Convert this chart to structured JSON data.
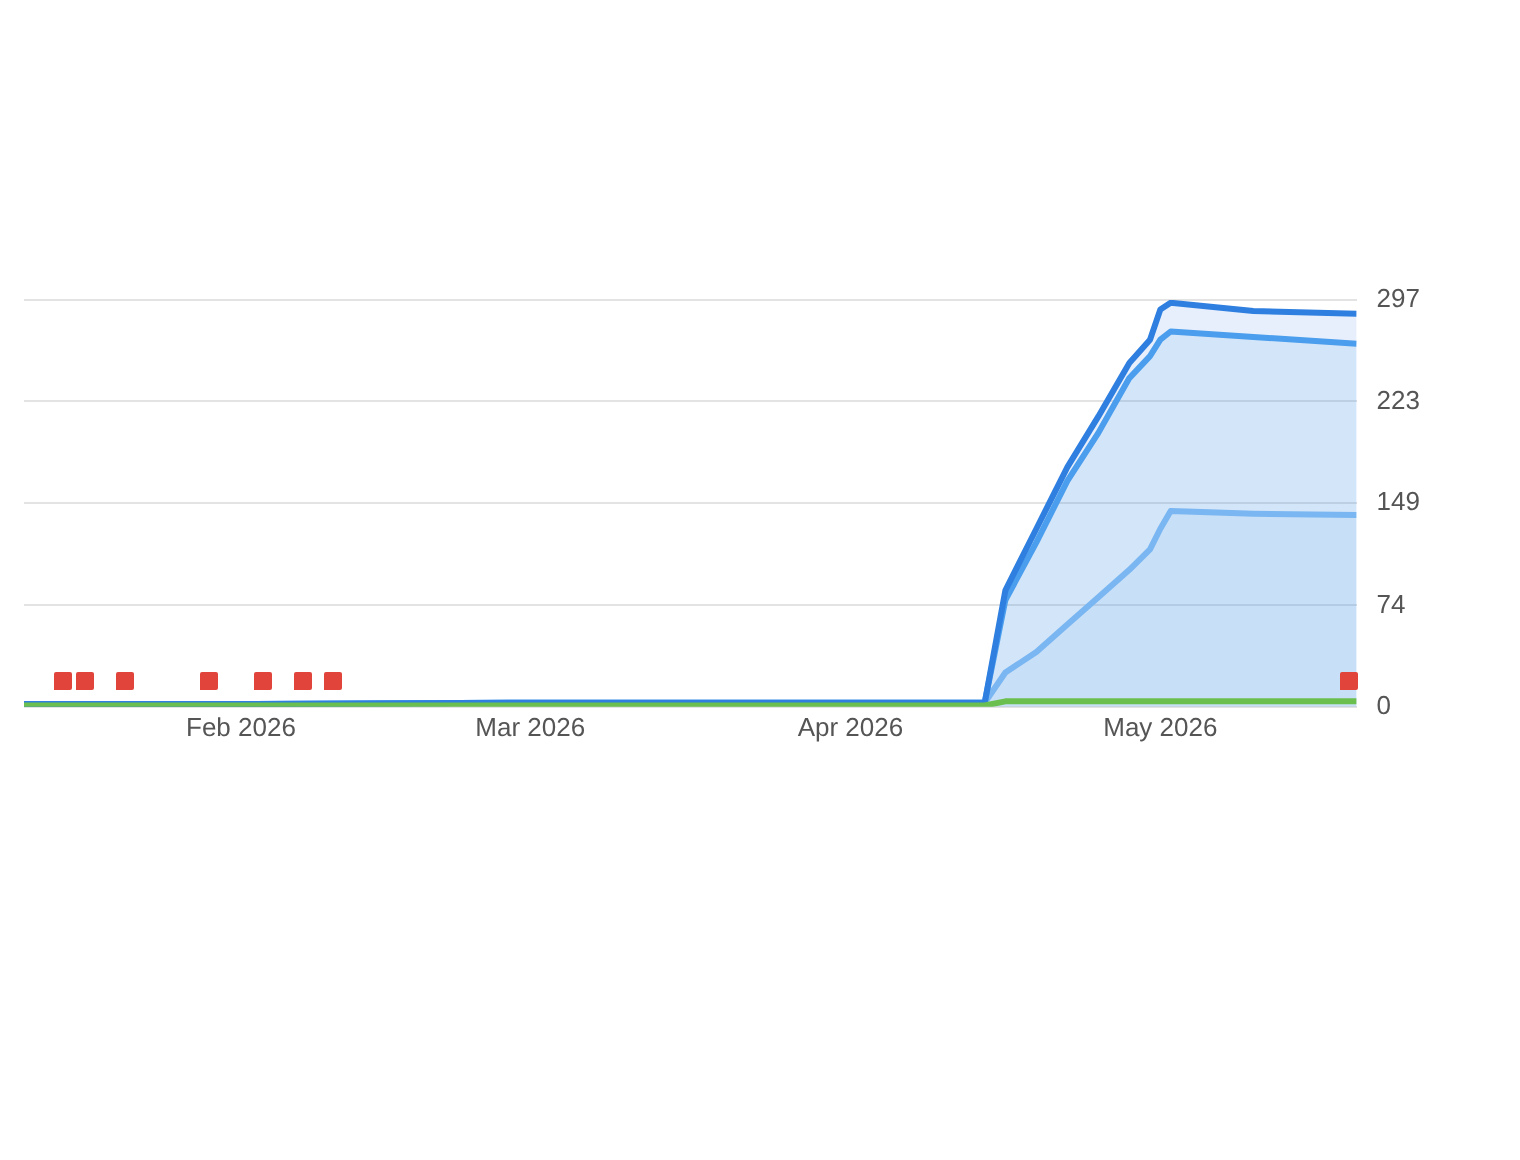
{
  "chart_data": {
    "type": "area",
    "x": [
      "2026-01-11",
      "2026-02-01",
      "2026-03-01",
      "2026-03-20",
      "2026-04-14",
      "2026-04-16",
      "2026-04-19",
      "2026-04-22",
      "2026-04-25",
      "2026-04-28",
      "2026-04-30",
      "2026-05-01",
      "2026-05-02",
      "2026-05-10",
      "2026-05-20"
    ],
    "series": [
      {
        "color": "#2f7fe0",
        "values": [
          2,
          2,
          3,
          3,
          3,
          85,
          130,
          175,
          212,
          251,
          268,
          290,
          295,
          289,
          287
        ]
      },
      {
        "color": "#4fa3ef",
        "values": [
          2,
          2,
          3,
          3,
          3,
          78,
          120,
          165,
          200,
          240,
          256,
          268,
          274,
          270,
          265
        ]
      },
      {
        "color": "#8cc3f5",
        "values": [
          2,
          2,
          3,
          3,
          3,
          25,
          40,
          60,
          80,
          100,
          115,
          130,
          143,
          141,
          140
        ]
      },
      {
        "type": "line",
        "color": "#6bbf4e",
        "values": [
          1,
          1,
          1,
          1,
          1,
          4,
          4,
          4,
          4,
          4,
          4,
          4,
          4,
          4,
          4
        ]
      }
    ],
    "xlim": [
      "2026-01-11",
      "2026-05-20"
    ],
    "xticks": [
      {
        "value": "2026-02-01",
        "label": "Feb 2026"
      },
      {
        "value": "2026-03-01",
        "label": "Mar 2026"
      },
      {
        "value": "2026-04-01",
        "label": "Apr 2026"
      },
      {
        "value": "2026-05-01",
        "label": "May 2026"
      }
    ],
    "ylim": [
      0,
      297
    ],
    "yticks": [
      0,
      74,
      149,
      223,
      297
    ],
    "grid": "y",
    "legend": false
  }
}
